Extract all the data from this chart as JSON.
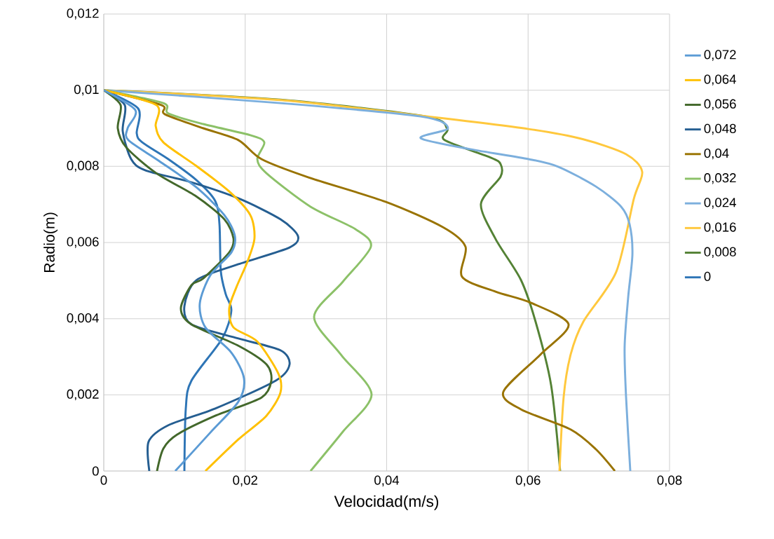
{
  "chart_data": {
    "type": "line",
    "xlabel": "Velocidad(m/s)",
    "ylabel": "Radio(m)",
    "xlim": [
      0,
      0.08
    ],
    "ylim": [
      0,
      0.012
    ],
    "xticks": [
      0,
      {
        "value": 0.02,
        "label": "0,02"
      },
      {
        "value": 0.04,
        "label": "0,04"
      },
      {
        "value": 0.06,
        "label": "0,06"
      },
      {
        "value": 0.08,
        "label": "0,08"
      }
    ],
    "yticks": [
      0,
      {
        "value": 0.002,
        "label": "0,002"
      },
      {
        "value": 0.004,
        "label": "0,004"
      },
      {
        "value": 0.006,
        "label": "0,006"
      },
      {
        "value": 0.008,
        "label": "0,008"
      },
      {
        "value": 0.01,
        "label": "0,01"
      },
      {
        "value": 0.012,
        "label": "0,012"
      }
    ],
    "grid": true,
    "legend": "right",
    "series": [
      {
        "name": "0",
        "color": "#2e75b6",
        "x": [
          0,
          0.00486,
          0.00466,
          0.00545,
          0.00912,
          0.01309,
          0.01576,
          0.01636,
          0.01655,
          0.01725,
          0.01804,
          0.01675,
          0.01239,
          0.0116,
          0.0114
        ],
        "values": [
          0.01,
          0.00952,
          0.00887,
          0.00863,
          0.00819,
          0.00764,
          0.00709,
          0.00648,
          0.00525,
          0.00464,
          0.00421,
          0.00348,
          0.00237,
          0.00164,
          0
        ]
      },
      {
        "name": "0,008",
        "color": "#548235",
        "x": [
          0,
          0.02498,
          0.0455,
          0.04857,
          0.04818,
          0.05472,
          0.05611,
          0.05611,
          0.05333,
          0.05541,
          0.05898,
          0.06106,
          0.06325,
          0.06453
        ],
        "values": [
          0.01,
          0.00975,
          0.00931,
          0.00898,
          0.00869,
          0.00823,
          0.00806,
          0.00773,
          0.00701,
          0.00609,
          0.00502,
          0.00392,
          0.00226,
          0
        ]
      },
      {
        "name": "0,016",
        "color": "#ffc83d",
        "x": [
          0,
          0.02498,
          0.04481,
          0.06007,
          0.06781,
          0.07385,
          0.07613,
          0.07494,
          0.07246,
          0.06781,
          0.06602,
          0.06503,
          0.06444
        ],
        "values": [
          0.01,
          0.00974,
          0.00933,
          0.00898,
          0.00871,
          0.00832,
          0.00786,
          0.00714,
          0.00523,
          0.00392,
          0.00306,
          0.00195,
          0
        ]
      },
      {
        "name": "0,024",
        "color": "#7cafdd",
        "x": [
          0,
          0.02498,
          0.04481,
          0.04867,
          0.04481,
          0.05185,
          0.06007,
          0.06424,
          0.06959,
          0.07316,
          0.07435,
          0.07475,
          0.07415,
          0.07365,
          0.07385,
          0.07445
        ],
        "values": [
          0.01,
          0.00966,
          0.00931,
          0.009,
          0.00874,
          0.00845,
          0.00819,
          0.00799,
          0.00747,
          0.00694,
          0.00648,
          0.00569,
          0.00456,
          0.00326,
          0.00195,
          0
        ]
      },
      {
        "name": "0,032",
        "color": "#8cc168",
        "x": [
          0,
          0.00843,
          0.00912,
          0.01408,
          0.02072,
          0.0227,
          0.02171,
          0.023,
          0.02924,
          0.03559,
          0.03777,
          0.0338,
          0.02974,
          0.03351,
          0.03787,
          0.0338,
          0.02924
        ],
        "values": [
          0.01,
          0.00966,
          0.00939,
          0.00911,
          0.00882,
          0.00863,
          0.00819,
          0.00782,
          0.00694,
          0.00635,
          0.00589,
          0.00497,
          0.00405,
          0.00306,
          0.00201,
          0.00103,
          0
        ]
      },
      {
        "name": "0,04",
        "color": "#997300",
        "x": [
          0,
          0.00813,
          0.00862,
          0.01408,
          0.01903,
          0.0223,
          0.02895,
          0.03985,
          0.04798,
          0.05115,
          0.05066,
          0.05541,
          0.06037,
          0.06572,
          0.06176,
          0.0565,
          0.05898,
          0.06602,
          0.06959,
          0.07227
        ],
        "values": [
          0.01,
          0.00961,
          0.00937,
          0.009,
          0.00869,
          0.00819,
          0.00771,
          0.00707,
          0.0064,
          0.00589,
          0.0051,
          0.00471,
          0.00442,
          0.00385,
          0.00306,
          0.00208,
          0.00162,
          0.00109,
          0.00057,
          0
        ]
      },
      {
        "name": "0,048",
        "color": "#255e91",
        "x": [
          0,
          0.00297,
          0.00268,
          0.00387,
          0.00585,
          0.01239,
          0.01903,
          0.02498,
          0.02746,
          0.02627,
          0.01903,
          0.01309,
          0.0114,
          0.01239,
          0.01903,
          0.02498,
          0.02627,
          0.02429,
          0.01576,
          0.00912,
          0.00634,
          0.00644
        ],
        "values": [
          0.01,
          0.00961,
          0.00893,
          0.00819,
          0.0079,
          0.00758,
          0.00716,
          0.00661,
          0.00617,
          0.00587,
          0.00543,
          0.00501,
          0.00433,
          0.00385,
          0.00348,
          0.00317,
          0.0028,
          0.00237,
          0.00164,
          0.0012,
          0.00077,
          0
        ]
      },
      {
        "name": "0,056",
        "color": "#43682b",
        "x": [
          0,
          0.00238,
          0.00198,
          0.00317,
          0.00743,
          0.01309,
          0.01705,
          0.01834,
          0.01774,
          0.01408,
          0.01239,
          0.0109,
          0.01239,
          0.01903,
          0.023,
          0.02369,
          0.0223,
          0.01576,
          0.01041,
          0.00843,
          0.00753
        ],
        "values": [
          0.01,
          0.00961,
          0.009,
          0.0085,
          0.00782,
          0.00721,
          0.00661,
          0.00611,
          0.00574,
          0.00506,
          0.00488,
          0.00427,
          0.00385,
          0.00329,
          0.0028,
          0.00237,
          0.00193,
          0.00145,
          0.00096,
          0.00059,
          0
        ]
      },
      {
        "name": "0,064",
        "color": "#ffc000",
        "x": [
          0,
          0.00743,
          0.00734,
          0.00843,
          0.01309,
          0.01774,
          0.02072,
          0.02131,
          0.02032,
          0.01874,
          0.01774,
          0.01834,
          0.02171,
          0.02468,
          0.02498,
          0.023,
          0.01903,
          0.01437
        ],
        "values": [
          0.01,
          0.00961,
          0.00906,
          0.00863,
          0.00801,
          0.00734,
          0.00672,
          0.00611,
          0.0055,
          0.00482,
          0.00427,
          0.00377,
          0.0034,
          0.00256,
          0.00206,
          0.00145,
          0.00083,
          0
        ]
      },
      {
        "name": "0,072",
        "color": "#5b9bd5",
        "x": [
          0,
          0.00446,
          0.00337,
          0.00347,
          0.00783,
          0.01309,
          0.01705,
          0.01854,
          0.01804,
          0.01507,
          0.01358,
          0.01437,
          0.01804,
          0.01983,
          0.01903,
          0.01507,
          0.01011
        ],
        "values": [
          0.01,
          0.00948,
          0.009,
          0.00869,
          0.00814,
          0.00745,
          0.00672,
          0.00617,
          0.00574,
          0.00514,
          0.0044,
          0.00377,
          0.00311,
          0.00243,
          0.00182,
          0.00101,
          0
        ]
      }
    ]
  }
}
